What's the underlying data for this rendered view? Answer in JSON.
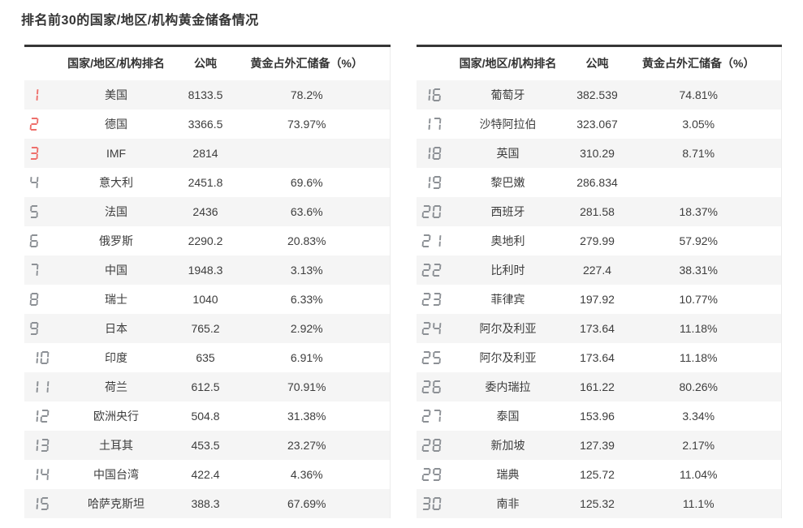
{
  "chart_data": {
    "type": "table",
    "title": "排名前30的国家/地区/机构黄金储备情况",
    "columns": {
      "rank": "",
      "name": "国家/地区/机构排名",
      "tons": "公吨",
      "pct": "黄金占外汇储备（%）"
    },
    "left_rows": [
      [
        1,
        "美国",
        "8133.5",
        "78.2%"
      ],
      [
        2,
        "德国",
        "3366.5",
        "73.97%"
      ],
      [
        3,
        "IMF",
        "2814",
        ""
      ],
      [
        4,
        "意大利",
        "2451.8",
        "69.6%"
      ],
      [
        5,
        "法国",
        "2436",
        "63.6%"
      ],
      [
        6,
        "俄罗斯",
        "2290.2",
        "20.83%"
      ],
      [
        7,
        "中国",
        "1948.3",
        "3.13%"
      ],
      [
        8,
        "瑞士",
        "1040",
        "6.33%"
      ],
      [
        9,
        "日本",
        "765.2",
        "2.92%"
      ],
      [
        10,
        "印度",
        "635",
        "6.91%"
      ],
      [
        11,
        "荷兰",
        "612.5",
        "70.91%"
      ],
      [
        12,
        "欧洲央行",
        "504.8",
        "31.38%"
      ],
      [
        13,
        "土耳其",
        "453.5",
        "23.27%"
      ],
      [
        14,
        "中国台湾",
        "422.4",
        "4.36%"
      ],
      [
        15,
        "哈萨克斯坦",
        "388.3",
        "67.69%"
      ]
    ],
    "right_rows": [
      [
        16,
        "葡萄牙",
        "382.539",
        "74.81%"
      ],
      [
        17,
        "沙特阿拉伯",
        "323.067",
        "3.05%"
      ],
      [
        18,
        "英国",
        "310.29",
        "8.71%"
      ],
      [
        19,
        "黎巴嫩",
        "286.834",
        ""
      ],
      [
        20,
        "西班牙",
        "281.58",
        "18.37%"
      ],
      [
        21,
        "奥地利",
        "279.99",
        "57.92%"
      ],
      [
        22,
        "比利时",
        "227.4",
        "38.31%"
      ],
      [
        23,
        "菲律宾",
        "197.92",
        "10.77%"
      ],
      [
        24,
        "阿尔及利亚",
        "173.64",
        "11.18%"
      ],
      [
        25,
        "阿尔及利亚",
        "173.64",
        "11.18%"
      ],
      [
        26,
        "委内瑞拉",
        "161.22",
        "80.26%"
      ],
      [
        27,
        "泰国",
        "153.96",
        "3.34%"
      ],
      [
        28,
        "新加坡",
        "127.39",
        "2.17%"
      ],
      [
        29,
        "瑞典",
        "125.72",
        "11.04%"
      ],
      [
        30,
        "南非",
        "125.32",
        "11.1%"
      ]
    ]
  },
  "style": {
    "rank_red": "#ee6f6b",
    "rank_gray": "#8c9095",
    "red_rank_max": 3,
    "border_dark": "#363636",
    "row_alt_bg": "#f5f5f5",
    "text_color": "#333333"
  }
}
